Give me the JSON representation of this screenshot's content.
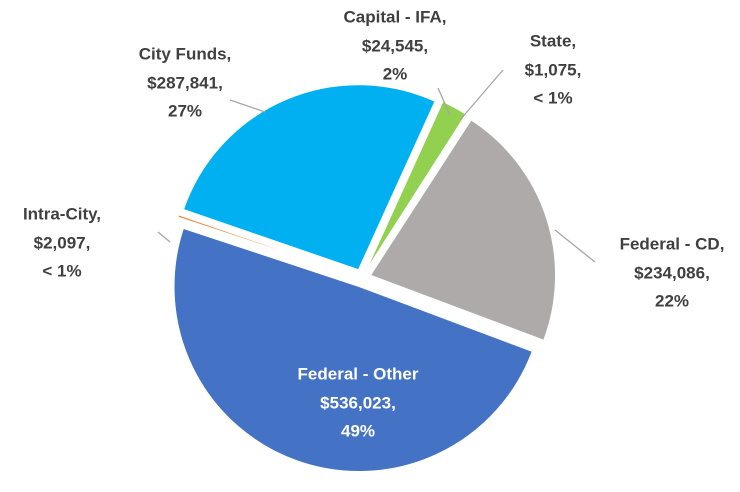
{
  "chart_data": {
    "type": "pie",
    "categories": [
      "City Funds",
      "Capital - IFA",
      "State",
      "Federal - CD",
      "Federal - Other",
      "Intra-City"
    ],
    "values": [
      287841,
      24545,
      1075,
      234086,
      536023,
      2097
    ],
    "value_labels": [
      "$287,841,",
      "$24,545,",
      "$1,075,",
      "$234,086,",
      "$536,023,",
      "$2,097,"
    ],
    "percent_labels": [
      "27%",
      "2%",
      "< 1%",
      "22%",
      "49%",
      "< 1%"
    ],
    "category_labels": [
      "City Funds,",
      "Capital - IFA,",
      "State,",
      "Federal - CD,",
      "Federal - Other",
      "Intra-City,"
    ],
    "colors": [
      "#00b0f0",
      "#92d050",
      "#ffc000",
      "#aeaaaa",
      "#4472c4",
      "#ed7d31"
    ]
  }
}
